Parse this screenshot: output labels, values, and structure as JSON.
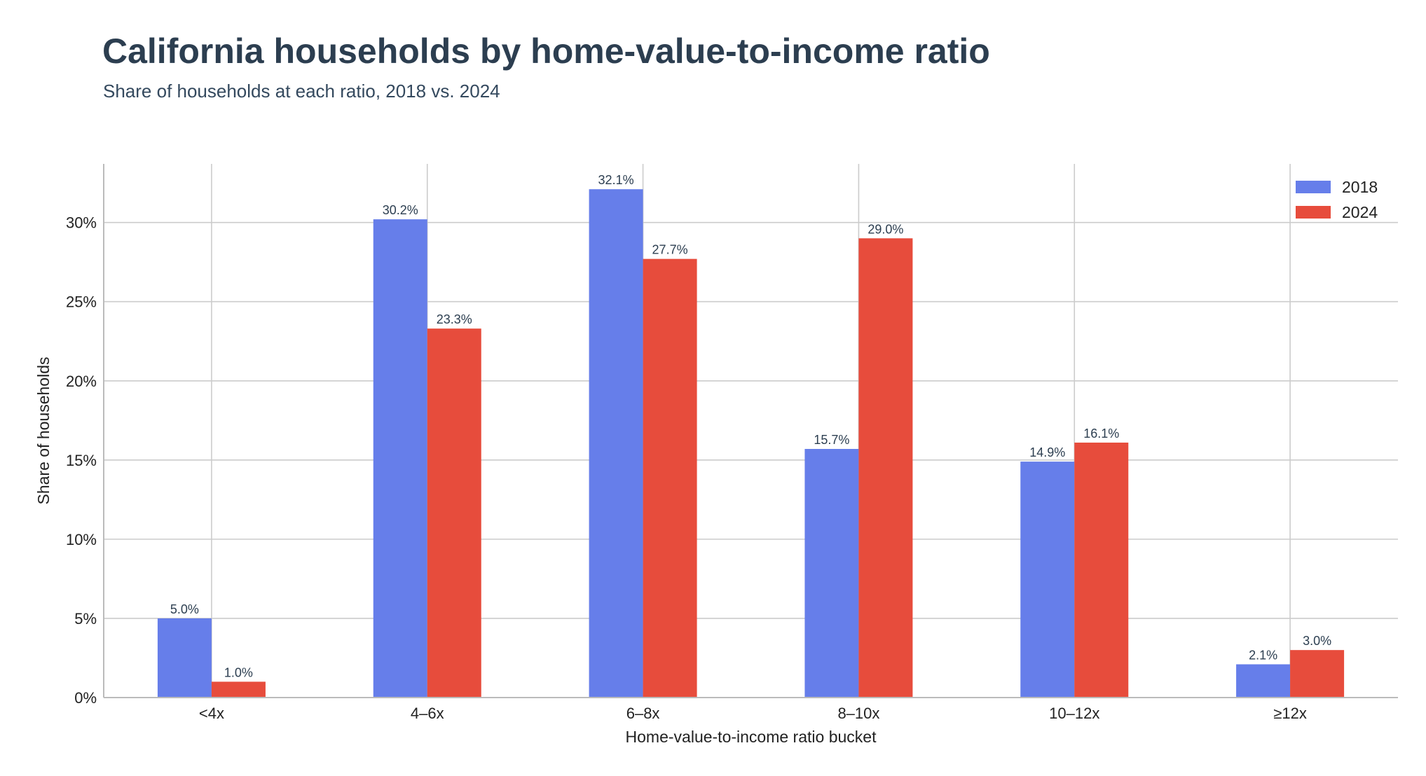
{
  "title": "California households by home-value-to-income ratio",
  "subtitle": "Share of households at each ratio, 2018 vs. 2024",
  "chart_data": {
    "type": "bar",
    "categories": [
      "<4x",
      "4–6x",
      "6–8x",
      "8–10x",
      "10–12x",
      "≥12x"
    ],
    "series": [
      {
        "name": "2018",
        "color": "#667eea",
        "values": [
          5.0,
          30.2,
          32.1,
          15.7,
          14.9,
          2.1
        ],
        "labels": [
          "5.0%",
          "30.2%",
          "32.1%",
          "15.7%",
          "14.9%",
          "2.1%"
        ]
      },
      {
        "name": "2024",
        "color": "#e74c3c",
        "values": [
          1.0,
          23.3,
          27.7,
          29.0,
          16.1,
          3.0
        ],
        "labels": [
          "1.0%",
          "23.3%",
          "27.7%",
          "29.0%",
          "16.1%",
          "3.0%"
        ]
      }
    ],
    "xlabel": "Home-value-to-income ratio bucket",
    "ylabel": "Share of households",
    "ylim": [
      0,
      33.7
    ],
    "yticks": [
      0,
      5,
      10,
      15,
      20,
      25,
      30
    ],
    "ytick_labels": [
      "0%",
      "5%",
      "10%",
      "15%",
      "20%",
      "25%",
      "30%"
    ],
    "grid": true,
    "legend": "top-right"
  }
}
